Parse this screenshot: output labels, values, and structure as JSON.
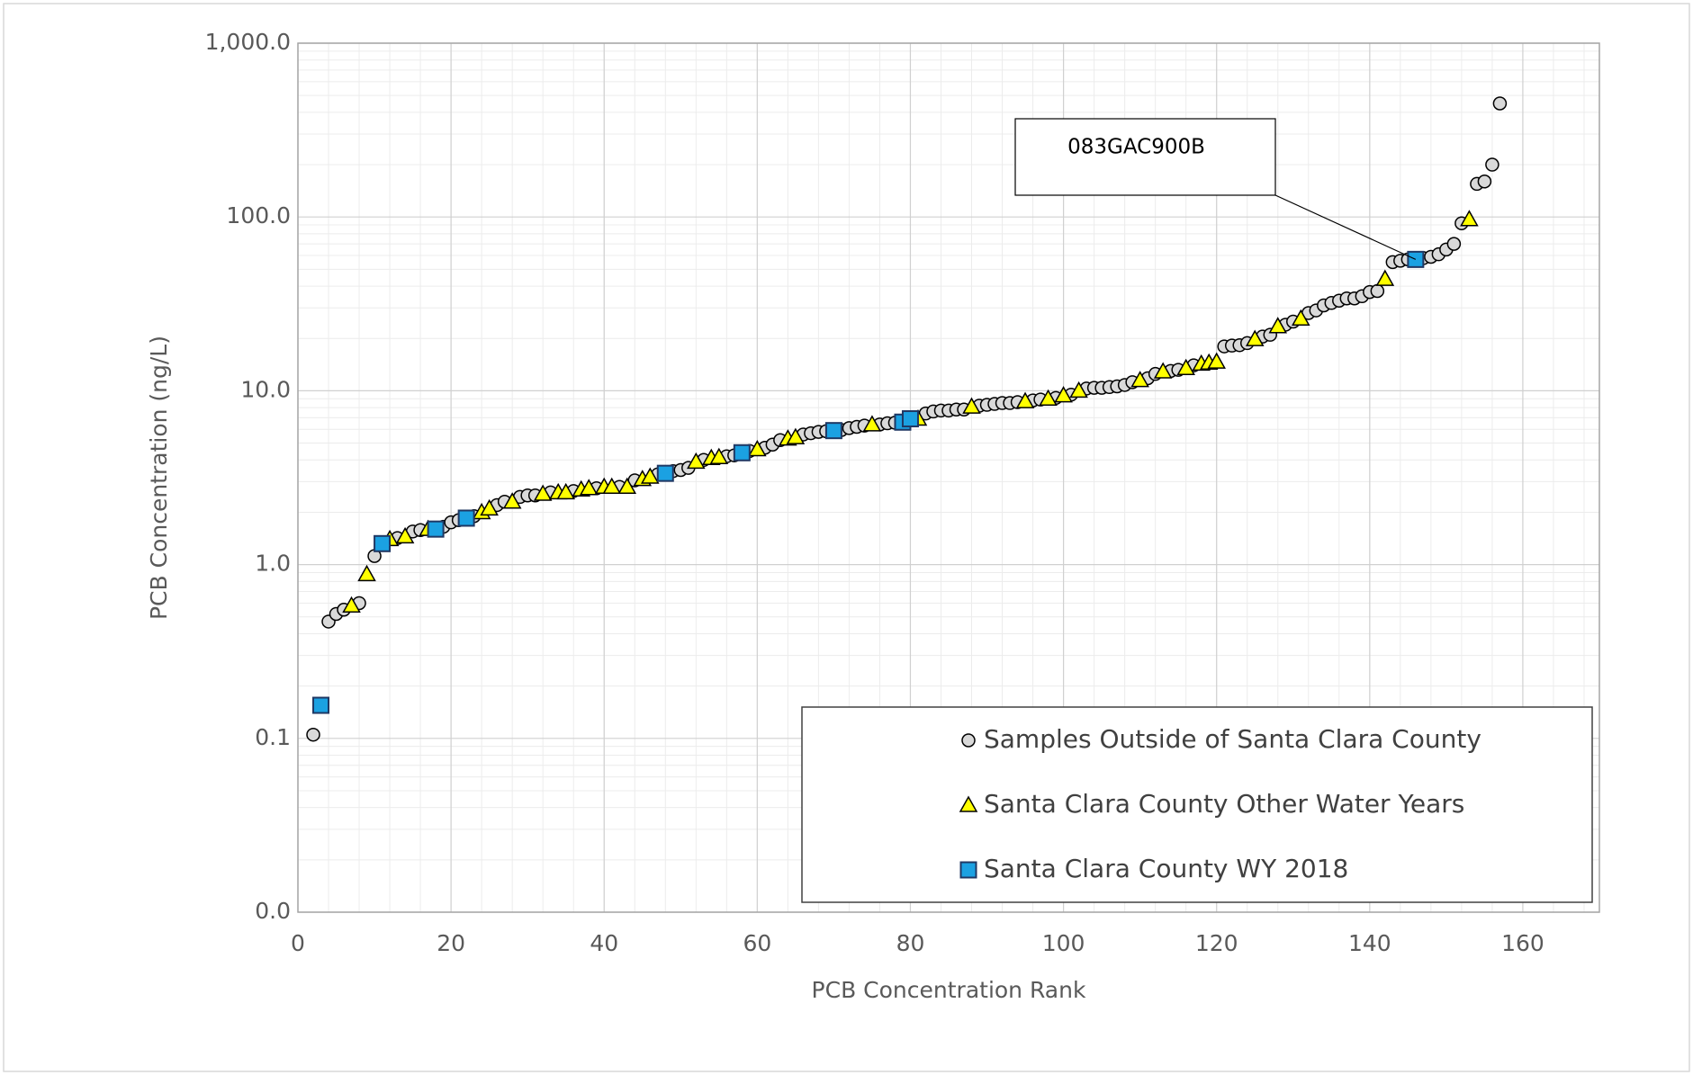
{
  "chart_data": {
    "type": "scatter",
    "x_label": "PCB Concentration Rank",
    "y_label": "PCB Concentration (ng/L)",
    "xlim": [
      0,
      170
    ],
    "xticks": [
      0,
      20,
      40,
      60,
      80,
      100,
      120,
      140,
      160
    ],
    "ylim": [
      0.01,
      1000
    ],
    "log_y": true,
    "grid": true,
    "yticks": [
      {
        "value": 0.01,
        "label": "0.0"
      },
      0.1,
      {
        "value": 1,
        "label": "1.0"
      },
      {
        "value": 10,
        "label": "10.0"
      },
      {
        "value": 100,
        "label": "100.0"
      },
      {
        "value": 1000,
        "label": "1,000.0"
      }
    ],
    "legend": "lower right",
    "series": [
      {
        "name": "Samples Outside of Santa Clara County",
        "marker": "circle",
        "color": "#d9d9d9",
        "x": [
          2,
          4,
          5,
          6,
          8,
          10,
          13,
          15,
          16,
          19,
          20,
          21,
          23,
          26,
          27,
          29,
          30,
          31,
          33,
          36,
          39,
          42,
          44,
          47,
          49,
          50,
          51,
          53,
          56,
          57,
          59,
          61,
          62,
          63,
          66,
          67,
          68,
          69,
          71,
          72,
          73,
          74,
          76,
          77,
          78,
          82,
          83,
          84,
          85,
          86,
          87,
          89,
          90,
          91,
          92,
          93,
          94,
          96,
          97,
          99,
          101,
          103,
          104,
          105,
          106,
          107,
          108,
          109,
          111,
          112,
          114,
          115,
          117,
          121,
          122,
          123,
          124,
          126,
          127,
          129,
          130,
          132,
          133,
          134,
          135,
          136,
          137,
          138,
          139,
          140,
          141,
          143,
          144,
          145,
          147,
          148,
          149,
          150,
          151,
          152,
          154,
          155,
          156,
          157
        ],
        "values": [
          0.105,
          0.47,
          0.52,
          0.55,
          0.6,
          1.12,
          1.42,
          1.55,
          1.58,
          1.65,
          1.75,
          1.8,
          1.9,
          2.2,
          2.3,
          2.45,
          2.5,
          2.5,
          2.6,
          2.65,
          2.75,
          2.8,
          3.05,
          3.3,
          3.45,
          3.5,
          3.6,
          4.0,
          4.2,
          4.25,
          4.5,
          4.7,
          4.9,
          5.2,
          5.6,
          5.7,
          5.8,
          5.85,
          5.95,
          6.1,
          6.2,
          6.3,
          6.4,
          6.5,
          6.55,
          7.4,
          7.6,
          7.7,
          7.7,
          7.8,
          7.8,
          8.2,
          8.3,
          8.4,
          8.5,
          8.5,
          8.6,
          8.8,
          8.9,
          9.1,
          9.5,
          10.3,
          10.4,
          10.4,
          10.5,
          10.6,
          10.8,
          11.2,
          11.8,
          12.5,
          13.0,
          13.2,
          14.0,
          18.0,
          18.2,
          18.3,
          18.8,
          20.5,
          21.0,
          24,
          25,
          28,
          29,
          31,
          32,
          33,
          34,
          34,
          35,
          37,
          37.5,
          55,
          56,
          57,
          58,
          59,
          61,
          65,
          70,
          92,
          155,
          160,
          200,
          450
        ]
      },
      {
        "name": "Santa Clara County Other Water Years",
        "marker": "triangle",
        "color": "#ffff00",
        "x": [
          7,
          9,
          12,
          14,
          17,
          24,
          25,
          28,
          32,
          34,
          35,
          37,
          38,
          40,
          41,
          43,
          45,
          46,
          52,
          54,
          55,
          60,
          64,
          65,
          75,
          81,
          88,
          95,
          98,
          100,
          102,
          110,
          113,
          116,
          118,
          119,
          120,
          125,
          128,
          131,
          142,
          153
        ],
        "values": [
          0.58,
          0.88,
          1.4,
          1.45,
          1.6,
          2.0,
          2.1,
          2.3,
          2.55,
          2.6,
          2.6,
          2.7,
          2.75,
          2.8,
          2.8,
          2.8,
          3.1,
          3.2,
          3.9,
          4.1,
          4.15,
          4.6,
          5.3,
          5.4,
          6.4,
          6.9,
          8.1,
          8.7,
          9.0,
          9.4,
          10.0,
          11.5,
          12.9,
          13.5,
          14.3,
          14.5,
          14.7,
          19.8,
          23.5,
          26,
          44,
          97
        ]
      },
      {
        "name": "Santa Clara County WY 2018",
        "marker": "square",
        "color": "#1ba1e2",
        "x": [
          3,
          11,
          18,
          22,
          48,
          58,
          70,
          79,
          80,
          146
        ],
        "values": [
          0.155,
          1.32,
          1.6,
          1.85,
          3.35,
          4.4,
          5.9,
          6.6,
          6.9,
          57
        ]
      }
    ],
    "annotations": [
      {
        "text": "083GAC900B",
        "x": 146,
        "y": 57
      }
    ]
  }
}
